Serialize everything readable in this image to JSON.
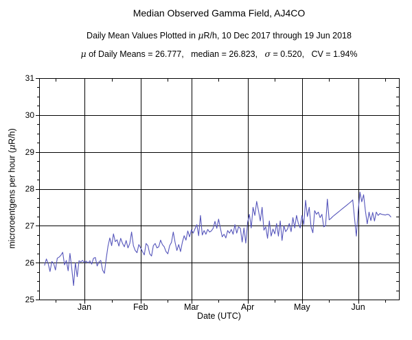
{
  "header": {
    "title": "Median Observed Gamma Field, AJ4CO",
    "subtitle": "Daily Mean Values Plotted in μR/h, 10 Dec 2017 through 19 Jun 2018",
    "stats": "μ of Daily Means = 26.777,   median = 26.823,   σ = 0.520,   CV = 1.94%"
  },
  "chart_data": {
    "type": "line",
    "title": "Median Observed Gamma Field, AJ4CO",
    "subtitle": "Daily Mean Values Plotted in μR/h, 10 Dec 2017 through 19 Jun 2018",
    "stats_line": "μ of Daily Means = 26.777,   median = 26.823,   σ = 0.520,   CV = 1.94%",
    "mean": 26.777,
    "median": 26.823,
    "sigma": 0.52,
    "cv_percent": 1.94,
    "xlabel": "Date (UTC)",
    "ylabel": "microroentgens per hour (μR/h)",
    "ylim": [
      25,
      31
    ],
    "y_major_ticks": [
      25,
      26,
      27,
      28,
      29,
      30,
      31
    ],
    "y_minor_step": 0.25,
    "grid": true,
    "legend": "none",
    "x_epoch": "2017-12-10",
    "x_range_days": [
      -3,
      195.5
    ],
    "months": [
      {
        "label": "Jan",
        "day": 22
      },
      {
        "label": "Feb",
        "day": 53
      },
      {
        "label": "Mar",
        "day": 81
      },
      {
        "label": "Apr",
        "day": 112
      },
      {
        "label": "May",
        "day": 142
      },
      {
        "label": "Jun",
        "day": 173
      }
    ],
    "x_minor_tick_days": [
      6,
      37,
      68,
      96,
      127,
      157,
      188
    ],
    "line_color": "#5555bb",
    "series": [
      {
        "name": "Daily mean gamma field (μR/h)",
        "x_unit": "days since 2017-12-10, one point per day",
        "values": [
          25.93,
          26.1,
          25.97,
          25.76,
          26.03,
          25.98,
          25.8,
          26.12,
          26.15,
          26.2,
          26.28,
          25.94,
          26.06,
          25.78,
          26.25,
          25.84,
          25.38,
          26.0,
          25.62,
          26.05,
          26.02,
          26.06,
          26.0,
          26.04,
          25.99,
          26.05,
          25.96,
          26.12,
          26.14,
          25.91,
          26.02,
          26.06,
          25.8,
          25.71,
          26.11,
          26.45,
          26.67,
          26.46,
          26.78,
          26.57,
          26.62,
          26.45,
          26.66,
          26.52,
          26.43,
          26.6,
          26.4,
          26.52,
          26.83,
          26.46,
          26.33,
          26.27,
          26.49,
          26.4,
          26.3,
          26.21,
          26.52,
          26.46,
          26.24,
          26.18,
          26.46,
          26.52,
          26.4,
          26.43,
          26.61,
          26.49,
          26.43,
          26.3,
          26.24,
          26.46,
          26.55,
          26.83,
          26.55,
          26.33,
          26.49,
          26.3,
          26.55,
          26.73,
          26.61,
          26.86,
          26.7,
          26.89,
          26.8,
          26.92,
          27.03,
          26.73,
          27.28,
          26.75,
          26.87,
          26.77,
          26.9,
          26.83,
          26.86,
          26.93,
          27.12,
          26.93,
          27.18,
          26.93,
          26.7,
          26.77,
          26.67,
          26.87,
          26.8,
          26.9,
          26.77,
          27.03,
          26.8,
          26.97,
          26.93,
          26.56,
          26.94,
          26.53,
          27.09,
          27.31,
          26.94,
          27.5,
          27.28,
          27.66,
          27.41,
          27.13,
          27.5,
          26.88,
          26.97,
          26.66,
          27.13,
          26.72,
          26.91,
          26.78,
          27.06,
          26.72,
          27.13,
          26.6,
          27.0,
          26.84,
          26.91,
          27.06,
          26.84,
          27.22,
          26.94,
          27.28,
          27.06,
          26.94,
          27.28,
          27.03,
          27.69,
          27.25,
          27.5,
          26.97,
          26.81,
          27.41,
          27.31,
          27.37,
          27.22,
          27.31,
          26.97,
          27.0,
          27.72,
          27.16,
          27.2,
          27.25,
          27.29,
          27.33,
          27.37,
          27.41,
          27.45,
          27.49,
          27.53,
          27.57,
          27.61,
          27.65,
          27.7,
          27.2,
          26.72,
          27.4,
          27.91,
          27.65,
          27.84,
          27.4,
          27.05,
          27.37,
          27.14,
          27.36,
          27.13,
          27.37,
          27.28,
          27.33,
          27.31,
          27.3,
          27.29,
          27.31,
          27.3,
          27.24
        ]
      }
    ]
  }
}
